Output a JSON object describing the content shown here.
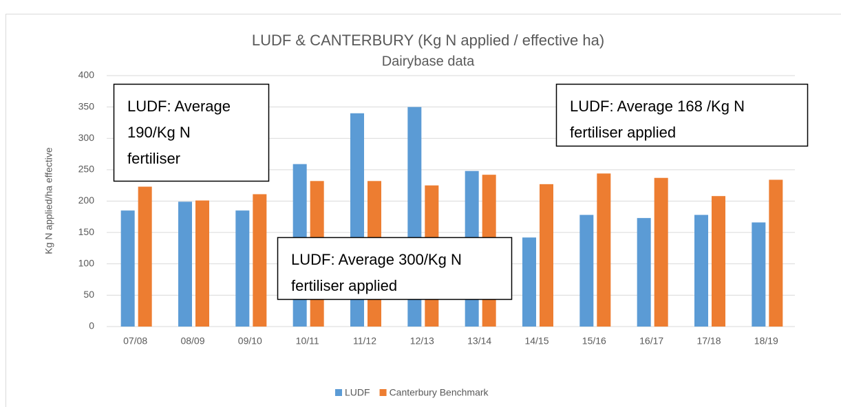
{
  "chart_data": {
    "type": "bar",
    "title": "LUDF & CANTERBURY (Kg N applied / effective ha)",
    "subtitle": "Dairybase data",
    "y_label": "Kg N applied/ha effective",
    "categories": [
      "07/08",
      "08/09",
      "09/10",
      "10/11",
      "11/12",
      "12/13",
      "13/14",
      "14/15",
      "15/16",
      "16/17",
      "17/18",
      "18/19"
    ],
    "series": [
      {
        "name": "LUDF",
        "color": "#5b9bd5",
        "values": [
          185,
          199,
          185,
          259,
          340,
          350,
          248,
          142,
          178,
          173,
          178,
          166
        ]
      },
      {
        "name": "Canterbury Benchmark",
        "color": "#ed7d31",
        "values": [
          223,
          201,
          211,
          232,
          232,
          225,
          242,
          227,
          244,
          237,
          208,
          234
        ]
      }
    ],
    "ylim": [
      0,
      400
    ],
    "yticks": [
      0,
      50,
      100,
      150,
      200,
      250,
      300,
      350,
      400
    ],
    "grid": true,
    "legend": "bottom",
    "annotations": [
      {
        "lines": [
          "LUDF: Average",
          "190/Kg N",
          "fertiliser"
        ]
      },
      {
        "lines": [
          "LUDF: Average 300/Kg N",
          "fertiliser applied"
        ]
      },
      {
        "lines": [
          "LUDF: Average 168 /Kg N",
          "fertiliser applied"
        ]
      }
    ]
  }
}
